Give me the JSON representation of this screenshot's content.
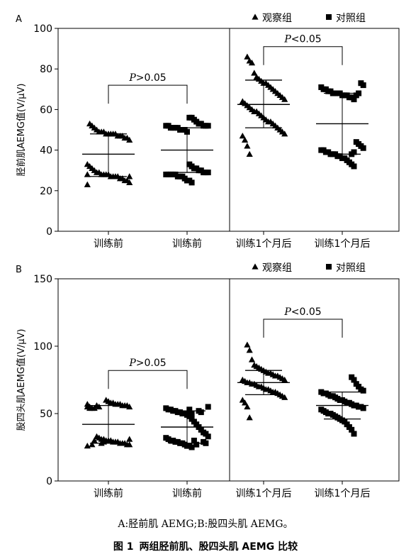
{
  "caption": {
    "sub": "A:胫前肌 AEMG;B:股四头肌 AEMG。",
    "fig_no": "图 1",
    "title": "两组胫前肌、股四头肌 AEMG 比较"
  },
  "chart_data": [
    {
      "type": "scatter",
      "panel_label": "A",
      "ylabel": "胫前肌AEMG值(V/μV)",
      "ylim": [
        0,
        100
      ],
      "yticks": [
        0,
        20,
        40,
        60,
        80,
        100
      ],
      "categories": [
        "训练前",
        "训练前",
        "训练1个月后",
        "训练1个月后"
      ],
      "legend": {
        "placement": "top-right",
        "entries": [
          {
            "name": "观察组",
            "marker": "triangle"
          },
          {
            "name": "对照组",
            "marker": "square"
          }
        ]
      },
      "divider_after_category": 1,
      "annotations": [
        {
          "text": "P>0.05",
          "from": 0,
          "to": 1,
          "y": 72
        },
        {
          "text": "P<0.05",
          "from": 2,
          "to": 3,
          "y": 91
        }
      ],
      "series": [
        {
          "name": "观察组",
          "marker": "triangle",
          "category": 0,
          "mean": 38,
          "sd_low": 27,
          "sd_high": 48,
          "values": [
            23,
            24,
            25,
            25,
            26,
            26,
            27,
            27,
            27,
            27,
            28,
            28,
            28,
            28,
            29,
            29,
            30,
            31,
            32,
            33,
            45,
            46,
            46,
            47,
            47,
            47,
            48,
            48,
            48,
            48,
            48,
            49,
            49,
            49,
            50,
            51,
            52,
            53,
            28,
            27
          ]
        },
        {
          "name": "对照组",
          "marker": "square",
          "category": 1,
          "mean": 40,
          "sd_low": 29,
          "sd_high": 51,
          "values": [
            24,
            25,
            25,
            26,
            27,
            27,
            27,
            28,
            28,
            28,
            28,
            28,
            29,
            29,
            29,
            30,
            30,
            31,
            31,
            32,
            33,
            49,
            50,
            50,
            50,
            51,
            51,
            51,
            51,
            52,
            52,
            52,
            52,
            52,
            53,
            53,
            54,
            55,
            56,
            56
          ]
        },
        {
          "name": "观察组",
          "marker": "triangle",
          "category": 2,
          "mean": 62.5,
          "sd_low": 51,
          "sd_high": 74.5,
          "values": [
            38,
            42,
            45,
            47,
            48,
            49,
            50,
            51,
            52,
            53,
            54,
            54,
            55,
            56,
            57,
            58,
            59,
            59,
            60,
            61,
            62,
            63,
            64,
            65,
            66,
            67,
            68,
            69,
            70,
            71,
            72,
            73,
            73,
            74,
            75,
            76,
            78,
            83,
            84,
            86
          ]
        },
        {
          "name": "对照组",
          "marker": "square",
          "category": 3,
          "mean": 53,
          "sd_low": 38,
          "sd_high": 68,
          "values": [
            32,
            33,
            34,
            35,
            36,
            36,
            37,
            37,
            38,
            38,
            38,
            39,
            39,
            40,
            40,
            41,
            42,
            43,
            44,
            65,
            66,
            66,
            67,
            67,
            67,
            68,
            68,
            68,
            68,
            69,
            69,
            70,
            70,
            71,
            72,
            73,
            68,
            67,
            39,
            38
          ]
        }
      ]
    },
    {
      "type": "scatter",
      "panel_label": "B",
      "ylabel": "股四头肌AEMG值(V/μV)",
      "ylim": [
        0,
        150
      ],
      "yticks": [
        0,
        50,
        100,
        150
      ],
      "categories": [
        "训练前",
        "训练前",
        "训练1个月后",
        "训练1个月后"
      ],
      "legend": {
        "placement": "top-right",
        "entries": [
          {
            "name": "观察组",
            "marker": "triangle"
          },
          {
            "name": "对照组",
            "marker": "square"
          }
        ]
      },
      "divider_after_category": 1,
      "annotations": [
        {
          "text": "P>0.05",
          "from": 0,
          "to": 1,
          "y": 82
        },
        {
          "text": "P<0.05",
          "from": 2,
          "to": 3,
          "y": 120
        }
      ],
      "series": [
        {
          "name": "观察组",
          "marker": "triangle",
          "category": 0,
          "mean": 42,
          "sd_low": 28,
          "sd_high": 56,
          "values": [
            26,
            27,
            27,
            28,
            28,
            28,
            29,
            29,
            29,
            30,
            30,
            30,
            31,
            31,
            32,
            33,
            54,
            54,
            55,
            55,
            55,
            56,
            56,
            56,
            57,
            57,
            57,
            58,
            58,
            59,
            60,
            29,
            28,
            55,
            56,
            30,
            27,
            54,
            57,
            31
          ]
        },
        {
          "name": "对照组",
          "marker": "square",
          "category": 1,
          "mean": 40,
          "sd_low": 28,
          "sd_high": 52,
          "values": [
            25,
            26,
            26,
            27,
            28,
            28,
            29,
            29,
            30,
            30,
            31,
            32,
            33,
            35,
            36,
            38,
            40,
            42,
            44,
            46,
            48,
            49,
            50,
            50,
            51,
            51,
            52,
            52,
            53,
            53,
            54,
            55,
            28,
            29,
            51,
            52,
            27,
            30,
            50,
            53
          ]
        },
        {
          "name": "观察组",
          "marker": "triangle",
          "category": 2,
          "mean": 73,
          "sd_low": 64,
          "sd_high": 82,
          "values": [
            47,
            55,
            58,
            60,
            62,
            63,
            64,
            65,
            66,
            66,
            67,
            68,
            68,
            69,
            70,
            70,
            71,
            72,
            72,
            73,
            73,
            74,
            75,
            75,
            76,
            77,
            78,
            78,
            79,
            80,
            80,
            81,
            82,
            83,
            84,
            85,
            86,
            90,
            97,
            101
          ]
        },
        {
          "name": "对照组",
          "marker": "square",
          "category": 3,
          "mean": 56,
          "sd_low": 46,
          "sd_high": 66,
          "values": [
            35,
            38,
            40,
            42,
            44,
            45,
            46,
            47,
            48,
            49,
            50,
            50,
            51,
            52,
            53,
            54,
            55,
            55,
            56,
            56,
            57,
            58,
            58,
            59,
            60,
            60,
            61,
            62,
            63,
            63,
            64,
            65,
            65,
            66,
            67,
            68,
            70,
            72,
            75,
            77
          ]
        }
      ]
    }
  ]
}
